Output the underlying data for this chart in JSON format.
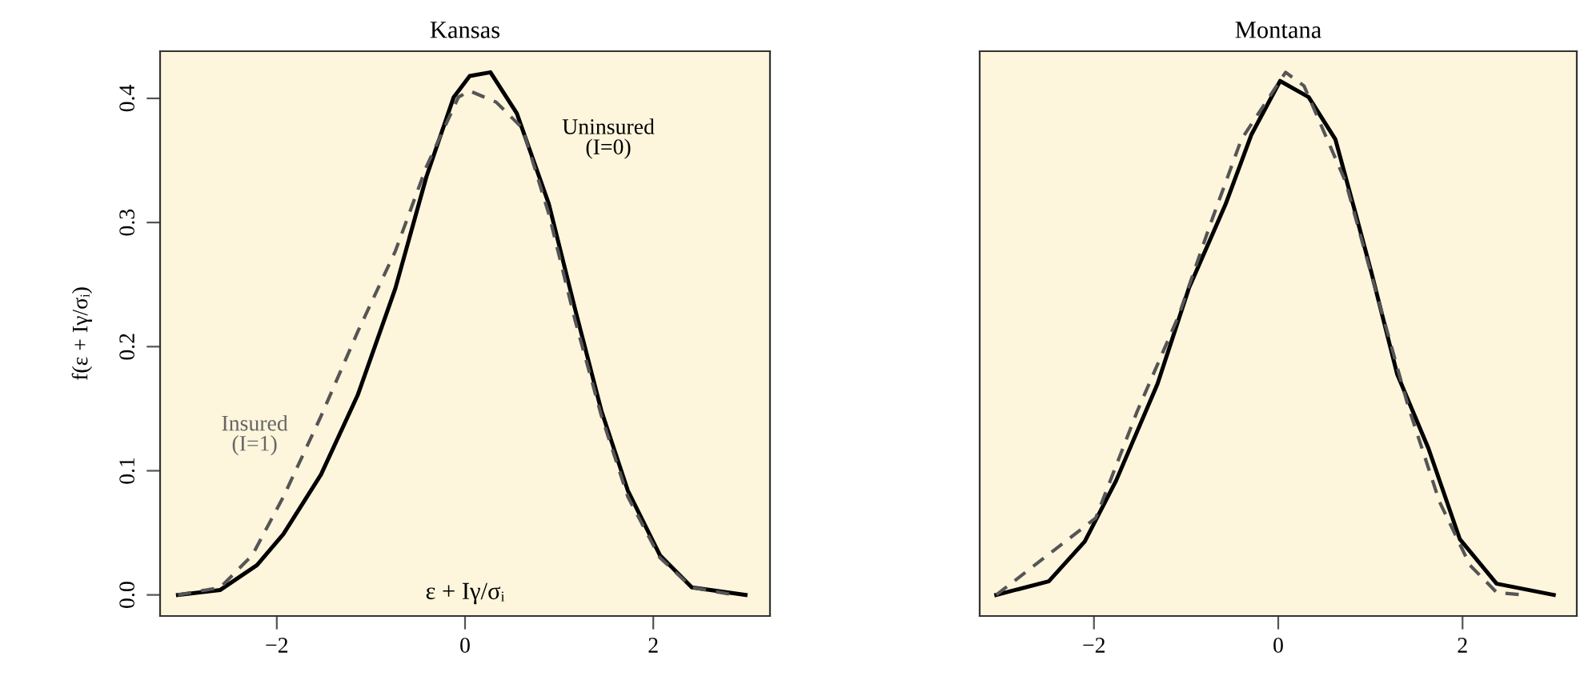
{
  "chart_data": [
    {
      "type": "line",
      "title": "Kansas",
      "xlabel": "ε + Iγ/σᵢ",
      "ylabel": "f(ε + Iγ/σᵢ)",
      "xlim": [
        -3.24,
        3.24
      ],
      "ylim": [
        -0.017,
        0.438
      ],
      "xticks": [
        {
          "value": -2,
          "label": "−2"
        },
        0,
        2
      ],
      "yticks": [
        {
          "value": 0,
          "label": "0.0"
        },
        0.1,
        0.2,
        0.3,
        0.4
      ],
      "grid": false,
      "legend": false,
      "series": [
        {
          "color": "#000000",
          "line_style": "solid",
          "x": [
            -3.05,
            -2.6,
            -2.21,
            -1.93,
            -1.53,
            -1.14,
            -0.74,
            -0.41,
            -0.12,
            0.05,
            0.27,
            0.55,
            0.89,
            1.17,
            1.45,
            1.73,
            2.07,
            2.41,
            2.98
          ],
          "values": [
            0,
            0.004,
            0.024,
            0.049,
            0.097,
            0.161,
            0.247,
            0.337,
            0.401,
            0.418,
            0.421,
            0.388,
            0.315,
            0.23,
            0.148,
            0.084,
            0.032,
            0.006,
            0
          ]
        },
        {
          "color": "#555555",
          "line_style": "dashed",
          "x": [
            -3.05,
            -2.6,
            -2.26,
            -1.93,
            -1.53,
            -1.14,
            -0.74,
            -0.41,
            -0.07,
            0.05,
            0.33,
            0.61,
            0.89,
            1.17,
            1.45,
            1.73,
            2.07,
            2.41,
            2.86
          ],
          "values": [
            0,
            0.006,
            0.032,
            0.079,
            0.144,
            0.212,
            0.277,
            0.345,
            0.401,
            0.406,
            0.397,
            0.376,
            0.307,
            0.221,
            0.144,
            0.079,
            0.03,
            0.006,
            0
          ]
        }
      ],
      "annotations": [
        "Uninsured\n(I=0)",
        "Insured\n(I=1)"
      ]
    },
    {
      "type": "line",
      "title": "Montana",
      "xlim": [
        -3.24,
        3.24
      ],
      "ylim": [
        -0.017,
        0.438
      ],
      "xticks": [
        {
          "value": -2,
          "label": "−2"
        },
        0,
        2
      ],
      "tick_labels": "x",
      "grid": false,
      "legend": false,
      "series": [
        {
          "color": "#000000",
          "line_style": "solid",
          "x": [
            -3.06,
            -2.49,
            -2.1,
            -1.76,
            -1.31,
            -0.97,
            -0.57,
            -0.29,
            0.02,
            0.33,
            0.62,
            0.84,
            1.01,
            1.29,
            1.63,
            1.97,
            2.37,
            2.99
          ],
          "values": [
            0,
            0.011,
            0.043,
            0.092,
            0.17,
            0.247,
            0.315,
            0.371,
            0.414,
            0.401,
            0.367,
            0.307,
            0.26,
            0.178,
            0.118,
            0.045,
            0.009,
            0
          ]
        },
        {
          "color": "#555555",
          "line_style": "dashed",
          "x": [
            -3.06,
            -1.98,
            -1.53,
            -1.08,
            -0.74,
            -0.4,
            0.08,
            0.28,
            0.73,
            1.07,
            1.41,
            1.75,
            2.08,
            2.37,
            2.65
          ],
          "values": [
            0,
            0.062,
            0.148,
            0.225,
            0.298,
            0.367,
            0.421,
            0.41,
            0.333,
            0.242,
            0.152,
            0.075,
            0.024,
            0.002,
            0
          ]
        }
      ]
    }
  ]
}
